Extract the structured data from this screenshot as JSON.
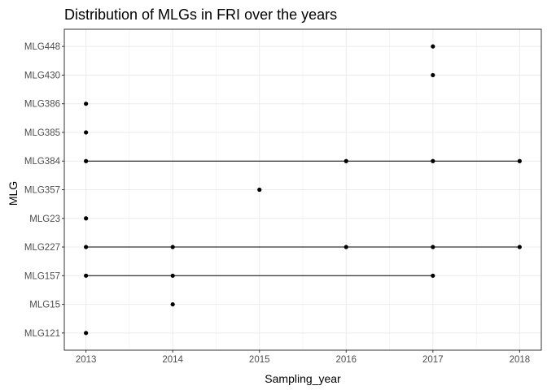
{
  "chart_data": {
    "type": "scatter",
    "title": "Distribution of MLGs in FRI over the years",
    "xlabel": "Sampling_year",
    "ylabel": "MLG",
    "x_ticks": [
      2013,
      2014,
      2015,
      2016,
      2017,
      2018
    ],
    "xlim": [
      2012.75,
      2018.25
    ],
    "y_categories": [
      "MLG121",
      "MLG15",
      "MLG157",
      "MLG227",
      "MLG23",
      "MLG357",
      "MLG384",
      "MLG385",
      "MLG386",
      "MLG430",
      "MLG448"
    ],
    "grid": true,
    "colors": {
      "points": "#000000",
      "lines": "#000000",
      "grid": "#ebebeb",
      "panel_border": "#333333"
    },
    "series": [
      {
        "mlg": "MLG121",
        "years": [
          2013
        ]
      },
      {
        "mlg": "MLG15",
        "years": [
          2014
        ]
      },
      {
        "mlg": "MLG157",
        "years": [
          2013,
          2014,
          2017
        ]
      },
      {
        "mlg": "MLG227",
        "years": [
          2013,
          2014,
          2016,
          2017,
          2018
        ]
      },
      {
        "mlg": "MLG23",
        "years": [
          2013
        ]
      },
      {
        "mlg": "MLG357",
        "years": [
          2015
        ]
      },
      {
        "mlg": "MLG384",
        "years": [
          2013,
          2016,
          2017,
          2018
        ]
      },
      {
        "mlg": "MLG385",
        "years": [
          2013
        ]
      },
      {
        "mlg": "MLG386",
        "years": [
          2013
        ]
      },
      {
        "mlg": "MLG430",
        "years": [
          2017
        ]
      },
      {
        "mlg": "MLG448",
        "years": [
          2017
        ]
      }
    ]
  }
}
